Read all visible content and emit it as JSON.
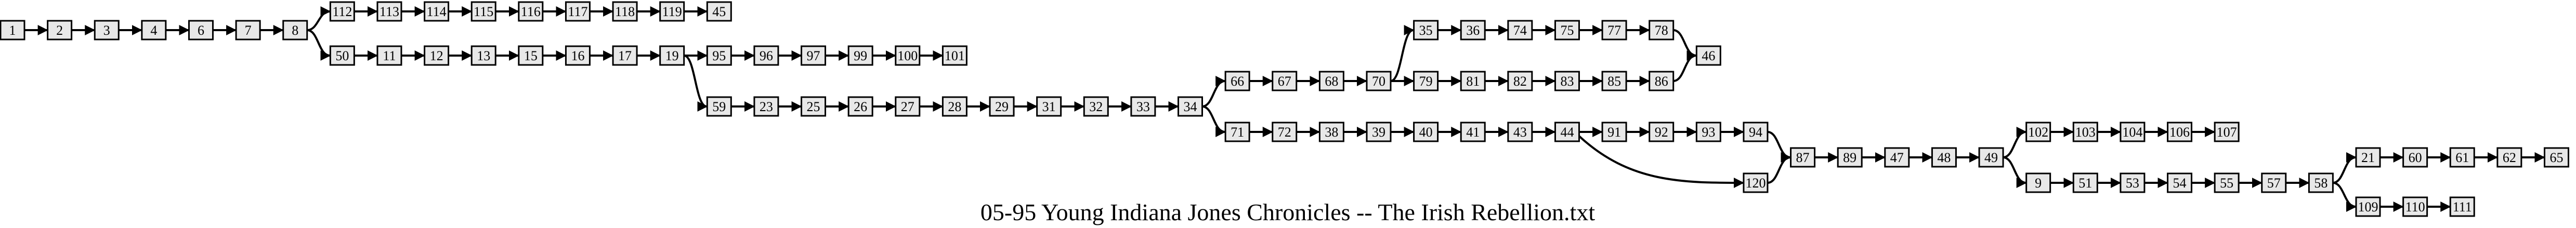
{
  "title": "05-95 Young Indiana Jones Chronicles -- The Irish Rebellion.txt",
  "colors": {
    "node_fill": "#e8e8e8",
    "stroke": "#000000",
    "background": "#ffffff"
  },
  "nodes": [
    "1",
    "2",
    "3",
    "4",
    "6",
    "7",
    "8",
    "112",
    "113",
    "114",
    "115",
    "116",
    "117",
    "118",
    "119",
    "45",
    "50",
    "11",
    "12",
    "13",
    "15",
    "16",
    "17",
    "19",
    "95",
    "96",
    "97",
    "99",
    "100",
    "101",
    "59",
    "23",
    "25",
    "26",
    "27",
    "28",
    "29",
    "31",
    "32",
    "33",
    "34",
    "66",
    "67",
    "68",
    "70",
    "35",
    "36",
    "74",
    "75",
    "77",
    "78",
    "46",
    "79",
    "81",
    "82",
    "83",
    "85",
    "86",
    "71",
    "72",
    "38",
    "39",
    "40",
    "41",
    "43",
    "44",
    "91",
    "92",
    "93",
    "94",
    "120",
    "87",
    "89",
    "47",
    "48",
    "49",
    "102",
    "103",
    "104",
    "106",
    "107",
    "9",
    "51",
    "53",
    "54",
    "55",
    "57",
    "58",
    "21",
    "60",
    "61",
    "62",
    "65",
    "109",
    "110",
    "111"
  ],
  "edges": [
    [
      "1",
      "2"
    ],
    [
      "2",
      "3"
    ],
    [
      "3",
      "4"
    ],
    [
      "4",
      "6"
    ],
    [
      "6",
      "7"
    ],
    [
      "7",
      "8"
    ],
    [
      "8",
      "112"
    ],
    [
      "112",
      "113"
    ],
    [
      "113",
      "114"
    ],
    [
      "114",
      "115"
    ],
    [
      "115",
      "116"
    ],
    [
      "116",
      "117"
    ],
    [
      "117",
      "118"
    ],
    [
      "118",
      "119"
    ],
    [
      "119",
      "45"
    ],
    [
      "8",
      "50"
    ],
    [
      "50",
      "11"
    ],
    [
      "11",
      "12"
    ],
    [
      "12",
      "13"
    ],
    [
      "13",
      "15"
    ],
    [
      "15",
      "16"
    ],
    [
      "16",
      "17"
    ],
    [
      "17",
      "19"
    ],
    [
      "19",
      "95"
    ],
    [
      "95",
      "96"
    ],
    [
      "96",
      "97"
    ],
    [
      "97",
      "99"
    ],
    [
      "99",
      "100"
    ],
    [
      "100",
      "101"
    ],
    [
      "19",
      "59"
    ],
    [
      "59",
      "23"
    ],
    [
      "23",
      "25"
    ],
    [
      "25",
      "26"
    ],
    [
      "26",
      "27"
    ],
    [
      "27",
      "28"
    ],
    [
      "28",
      "29"
    ],
    [
      "29",
      "31"
    ],
    [
      "31",
      "32"
    ],
    [
      "32",
      "33"
    ],
    [
      "33",
      "34"
    ],
    [
      "34",
      "66"
    ],
    [
      "66",
      "67"
    ],
    [
      "67",
      "68"
    ],
    [
      "68",
      "70"
    ],
    [
      "70",
      "35"
    ],
    [
      "35",
      "36"
    ],
    [
      "36",
      "74"
    ],
    [
      "74",
      "75"
    ],
    [
      "75",
      "77"
    ],
    [
      "77",
      "78"
    ],
    [
      "78",
      "46"
    ],
    [
      "70",
      "79"
    ],
    [
      "79",
      "81"
    ],
    [
      "81",
      "82"
    ],
    [
      "82",
      "83"
    ],
    [
      "83",
      "85"
    ],
    [
      "85",
      "86"
    ],
    [
      "86",
      "46"
    ],
    [
      "34",
      "71"
    ],
    [
      "71",
      "72"
    ],
    [
      "72",
      "38"
    ],
    [
      "38",
      "39"
    ],
    [
      "39",
      "40"
    ],
    [
      "40",
      "41"
    ],
    [
      "41",
      "43"
    ],
    [
      "43",
      "44"
    ],
    [
      "44",
      "91"
    ],
    [
      "91",
      "92"
    ],
    [
      "92",
      "93"
    ],
    [
      "93",
      "94"
    ],
    [
      "94",
      "87"
    ],
    [
      "44",
      "120"
    ],
    [
      "120",
      "87"
    ],
    [
      "87",
      "89"
    ],
    [
      "89",
      "47"
    ],
    [
      "47",
      "48"
    ],
    [
      "48",
      "49"
    ],
    [
      "49",
      "102"
    ],
    [
      "102",
      "103"
    ],
    [
      "103",
      "104"
    ],
    [
      "104",
      "106"
    ],
    [
      "106",
      "107"
    ],
    [
      "49",
      "9"
    ],
    [
      "9",
      "51"
    ],
    [
      "51",
      "53"
    ],
    [
      "53",
      "54"
    ],
    [
      "54",
      "55"
    ],
    [
      "55",
      "57"
    ],
    [
      "57",
      "58"
    ],
    [
      "58",
      "21"
    ],
    [
      "21",
      "60"
    ],
    [
      "60",
      "61"
    ],
    [
      "61",
      "62"
    ],
    [
      "62",
      "65"
    ],
    [
      "58",
      "109"
    ],
    [
      "109",
      "110"
    ],
    [
      "110",
      "111"
    ]
  ]
}
